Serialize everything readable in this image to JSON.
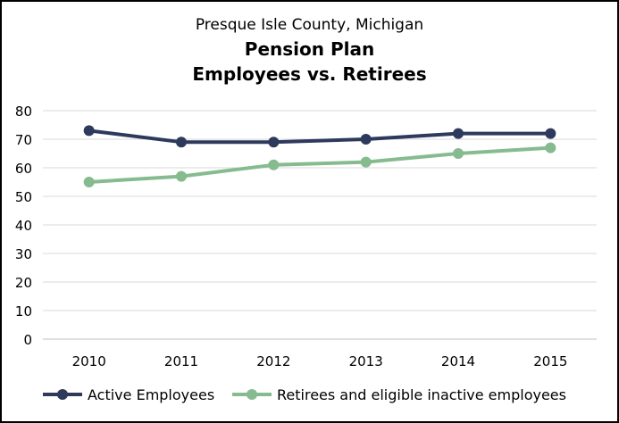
{
  "chart_data": {
    "type": "line",
    "title": [
      "Presque Isle County, Michigan",
      "Pension Plan",
      "Employees vs. Retirees"
    ],
    "categories": [
      "2010",
      "2011",
      "2012",
      "2013",
      "2014",
      "2015"
    ],
    "series": [
      {
        "name": "Active Employees",
        "values": [
          73,
          69,
          69,
          70,
          72,
          72
        ],
        "color": "#2e3a5c"
      },
      {
        "name": "Retirees and eligible inactive employees",
        "values": [
          55,
          57,
          61,
          62,
          65,
          67
        ],
        "color": "#86bb8f"
      }
    ],
    "ylim": [
      0,
      80
    ],
    "yticks": [
      "0",
      "10",
      "20",
      "30",
      "40",
      "50",
      "60",
      "70",
      "80"
    ],
    "grid": true,
    "legend": "bottom",
    "gridColor": "#d9d9d9"
  }
}
